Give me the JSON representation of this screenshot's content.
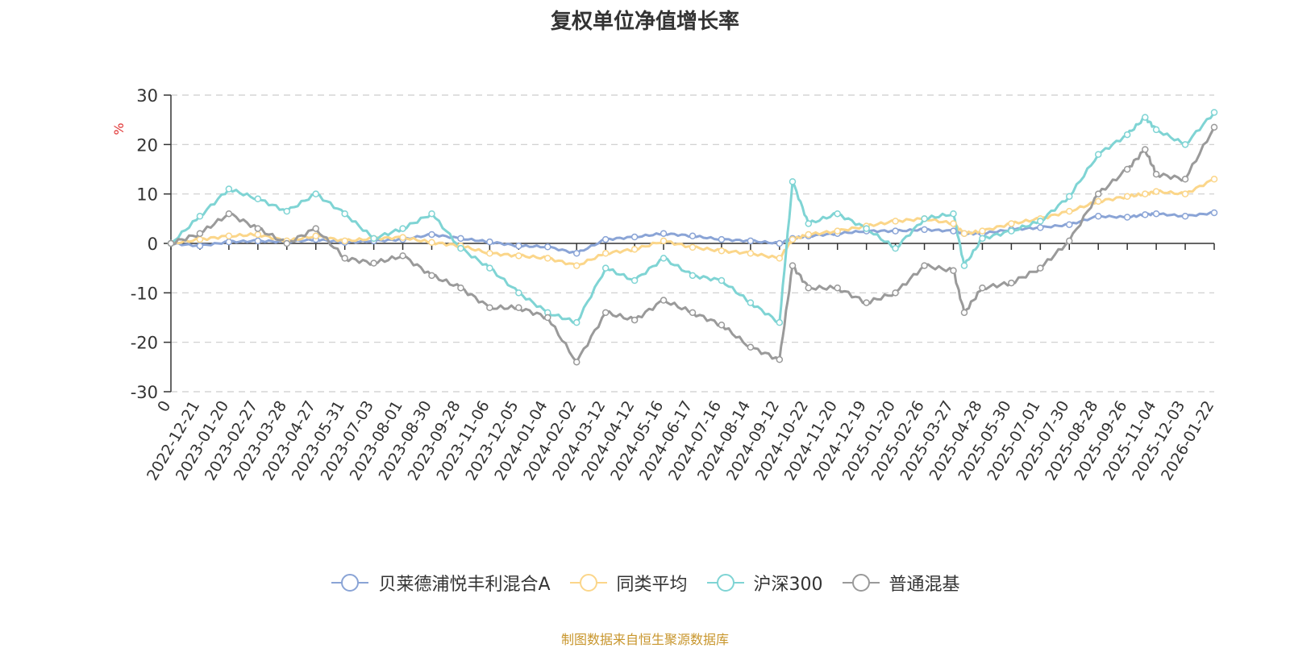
{
  "source_note": "制图数据来自恒生聚源数据库",
  "chart_data": {
    "type": "line",
    "title": "复权单位净值增长率",
    "ylabel": "%",
    "xlabel": "",
    "ylim": [
      -30,
      30
    ],
    "yticks": [
      30,
      20,
      10,
      0,
      -10,
      -20,
      -30
    ],
    "grid": true,
    "legend_position": "bottom",
    "x_tick_labels": [
      "0",
      "2022-12-21",
      "2023-01-20",
      "2023-02-27",
      "2023-03-28",
      "2023-04-27",
      "2023-05-31",
      "2023-07-03",
      "2023-08-01",
      "2023-08-30",
      "2023-09-28",
      "2023-11-06",
      "2023-12-05",
      "2024-01-04",
      "2024-02-02",
      "2024-03-12",
      "2024-04-12",
      "2024-05-16",
      "2024-06-17",
      "2024-07-16",
      "2024-08-14",
      "2024-09-12",
      "2024-10-22",
      "2024-11-20",
      "2024-12-19",
      "2025-01-20",
      "2025-02-26",
      "2025-03-27",
      "2025-04-28",
      "2025-05-30",
      "2025-07-01",
      "2025-07-30",
      "2025-08-28",
      "2025-09-26",
      "2025-11-04",
      "2025-12-03",
      "2026-01-22"
    ],
    "x": [
      "0",
      "2022-12-21",
      "2023-01-20",
      "2023-02-27",
      "2023-03-28",
      "2023-04-27",
      "2023-05-31",
      "2023-07-03",
      "2023-08-01",
      "2023-08-30",
      "2023-09-28",
      "2023-11-06",
      "2023-12-05",
      "2024-01-04",
      "2024-02-02",
      "2024-03-12",
      "2024-04-12",
      "2024-05-16",
      "2024-06-17",
      "2024-07-16",
      "2024-08-14",
      "2024-09-12",
      "2024-09-30",
      "2024-10-22",
      "2024-11-20",
      "2024-12-19",
      "2025-01-20",
      "2025-02-26",
      "2025-03-27",
      "2025-04-08",
      "2025-04-28",
      "2025-05-30",
      "2025-07-01",
      "2025-07-30",
      "2025-08-28",
      "2025-09-26",
      "2025-10-20",
      "2025-11-04",
      "2025-12-03",
      "2026-01-22"
    ],
    "series": [
      {
        "name": "贝莱德浦悦丰利混合A",
        "color": "#8aa4d6",
        "values": [
          0,
          -0.5,
          0.3,
          0.5,
          0.3,
          0.8,
          0.2,
          0.5,
          0.8,
          1.8,
          1.0,
          0.3,
          -0.5,
          -0.7,
          -2.0,
          0.8,
          1.3,
          2.0,
          1.5,
          0.8,
          0.5,
          0.0,
          1.0,
          1.5,
          2.0,
          2.5,
          2.5,
          2.8,
          2.5,
          2.0,
          2.0,
          2.8,
          3.2,
          3.8,
          5.5,
          5.3,
          5.8,
          6.0,
          5.5,
          6.2
        ]
      },
      {
        "name": "同类平均",
        "color": "#fbd68a",
        "values": [
          0,
          0.8,
          1.5,
          1.8,
          0.5,
          1.5,
          0.5,
          1.0,
          1.2,
          0.2,
          -0.5,
          -2.0,
          -2.5,
          -3.0,
          -4.5,
          -2.0,
          -1.2,
          0.5,
          -0.8,
          -1.5,
          -2.0,
          -3.0,
          0.8,
          1.8,
          2.5,
          3.5,
          4.5,
          5.0,
          4.0,
          2.0,
          2.5,
          4.0,
          5.0,
          6.5,
          8.5,
          9.5,
          10.0,
          10.5,
          10.0,
          13.0
        ]
      },
      {
        "name": "沪深300",
        "color": "#7fd4d4",
        "values": [
          0,
          5.5,
          11.0,
          9.0,
          6.5,
          10.0,
          6.0,
          1.0,
          3.0,
          6.0,
          -1.0,
          -5.0,
          -10.0,
          -14.0,
          -16.0,
          -5.0,
          -7.5,
          -3.0,
          -6.5,
          -7.5,
          -12.0,
          -16.0,
          12.5,
          4.0,
          6.0,
          3.0,
          -1.0,
          5.0,
          6.0,
          -4.5,
          1.0,
          2.5,
          4.5,
          9.5,
          18.0,
          22.0,
          25.5,
          23.0,
          20.0,
          26.5
        ]
      },
      {
        "name": "普通混基",
        "color": "#9a9a9a",
        "values": [
          0,
          2.0,
          6.0,
          3.0,
          0.0,
          3.0,
          -3.0,
          -4.0,
          -2.5,
          -6.5,
          -9.0,
          -13.0,
          -13.0,
          -15.0,
          -24.0,
          -14.0,
          -15.5,
          -11.5,
          -14.0,
          -16.5,
          -21.0,
          -23.5,
          -4.5,
          -9.0,
          -9.0,
          -12.0,
          -10.0,
          -4.5,
          -5.5,
          -14.0,
          -9.0,
          -8.0,
          -5.0,
          0.5,
          10.0,
          15.0,
          19.0,
          14.0,
          13.0,
          23.5
        ]
      }
    ]
  }
}
